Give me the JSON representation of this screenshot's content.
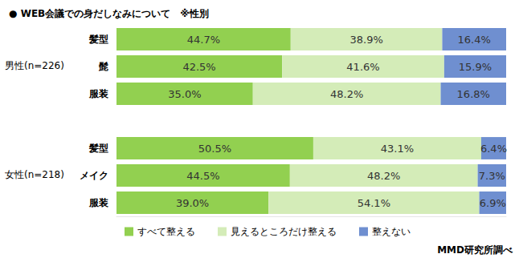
{
  "chart_data": {
    "type": "bar",
    "title": "● WEB会議での身だしなみについて　※性別",
    "source": "MMD研究所調べ",
    "orientation": "horizontal",
    "stacked": true,
    "data_labels": true,
    "tick_labels": "y",
    "grid": false,
    "legend": "bottom",
    "xlim": [
      0,
      100
    ],
    "categories": [
      "髪型",
      "髭",
      "服装",
      null,
      "髪型",
      "メイク",
      "服装"
    ],
    "group_labels": [
      {
        "label": "男性(n=226)",
        "from": 0,
        "to": 2
      },
      {
        "label": "女性(n=218)",
        "from": 4,
        "to": 6
      }
    ],
    "series": [
      {
        "name": "すべて整える",
        "color": "#92d050",
        "values": [
          44.7,
          42.5,
          35.0,
          null,
          50.5,
          44.5,
          39.0
        ],
        "value_labels": [
          "44.7%",
          "42.5%",
          "35.0%",
          null,
          "50.5%",
          "44.5%",
          "39.0%"
        ]
      },
      {
        "name": "見えるところだけ整える",
        "color": "#d4ecb8",
        "values": [
          38.9,
          41.6,
          48.2,
          null,
          43.1,
          48.2,
          54.1
        ],
        "value_labels": [
          "38.9%",
          "41.6%",
          "48.2%",
          null,
          "43.1%",
          "48.2%",
          "54.1%"
        ]
      },
      {
        "name": "整えない",
        "color": "#6f8fd0",
        "values": [
          16.4,
          15.9,
          16.8,
          null,
          6.4,
          7.3,
          6.9
        ],
        "value_labels": [
          "16.4%",
          "15.9%",
          "16.8%",
          null,
          "6.4%",
          "7.3%",
          "6.9%"
        ]
      }
    ]
  }
}
